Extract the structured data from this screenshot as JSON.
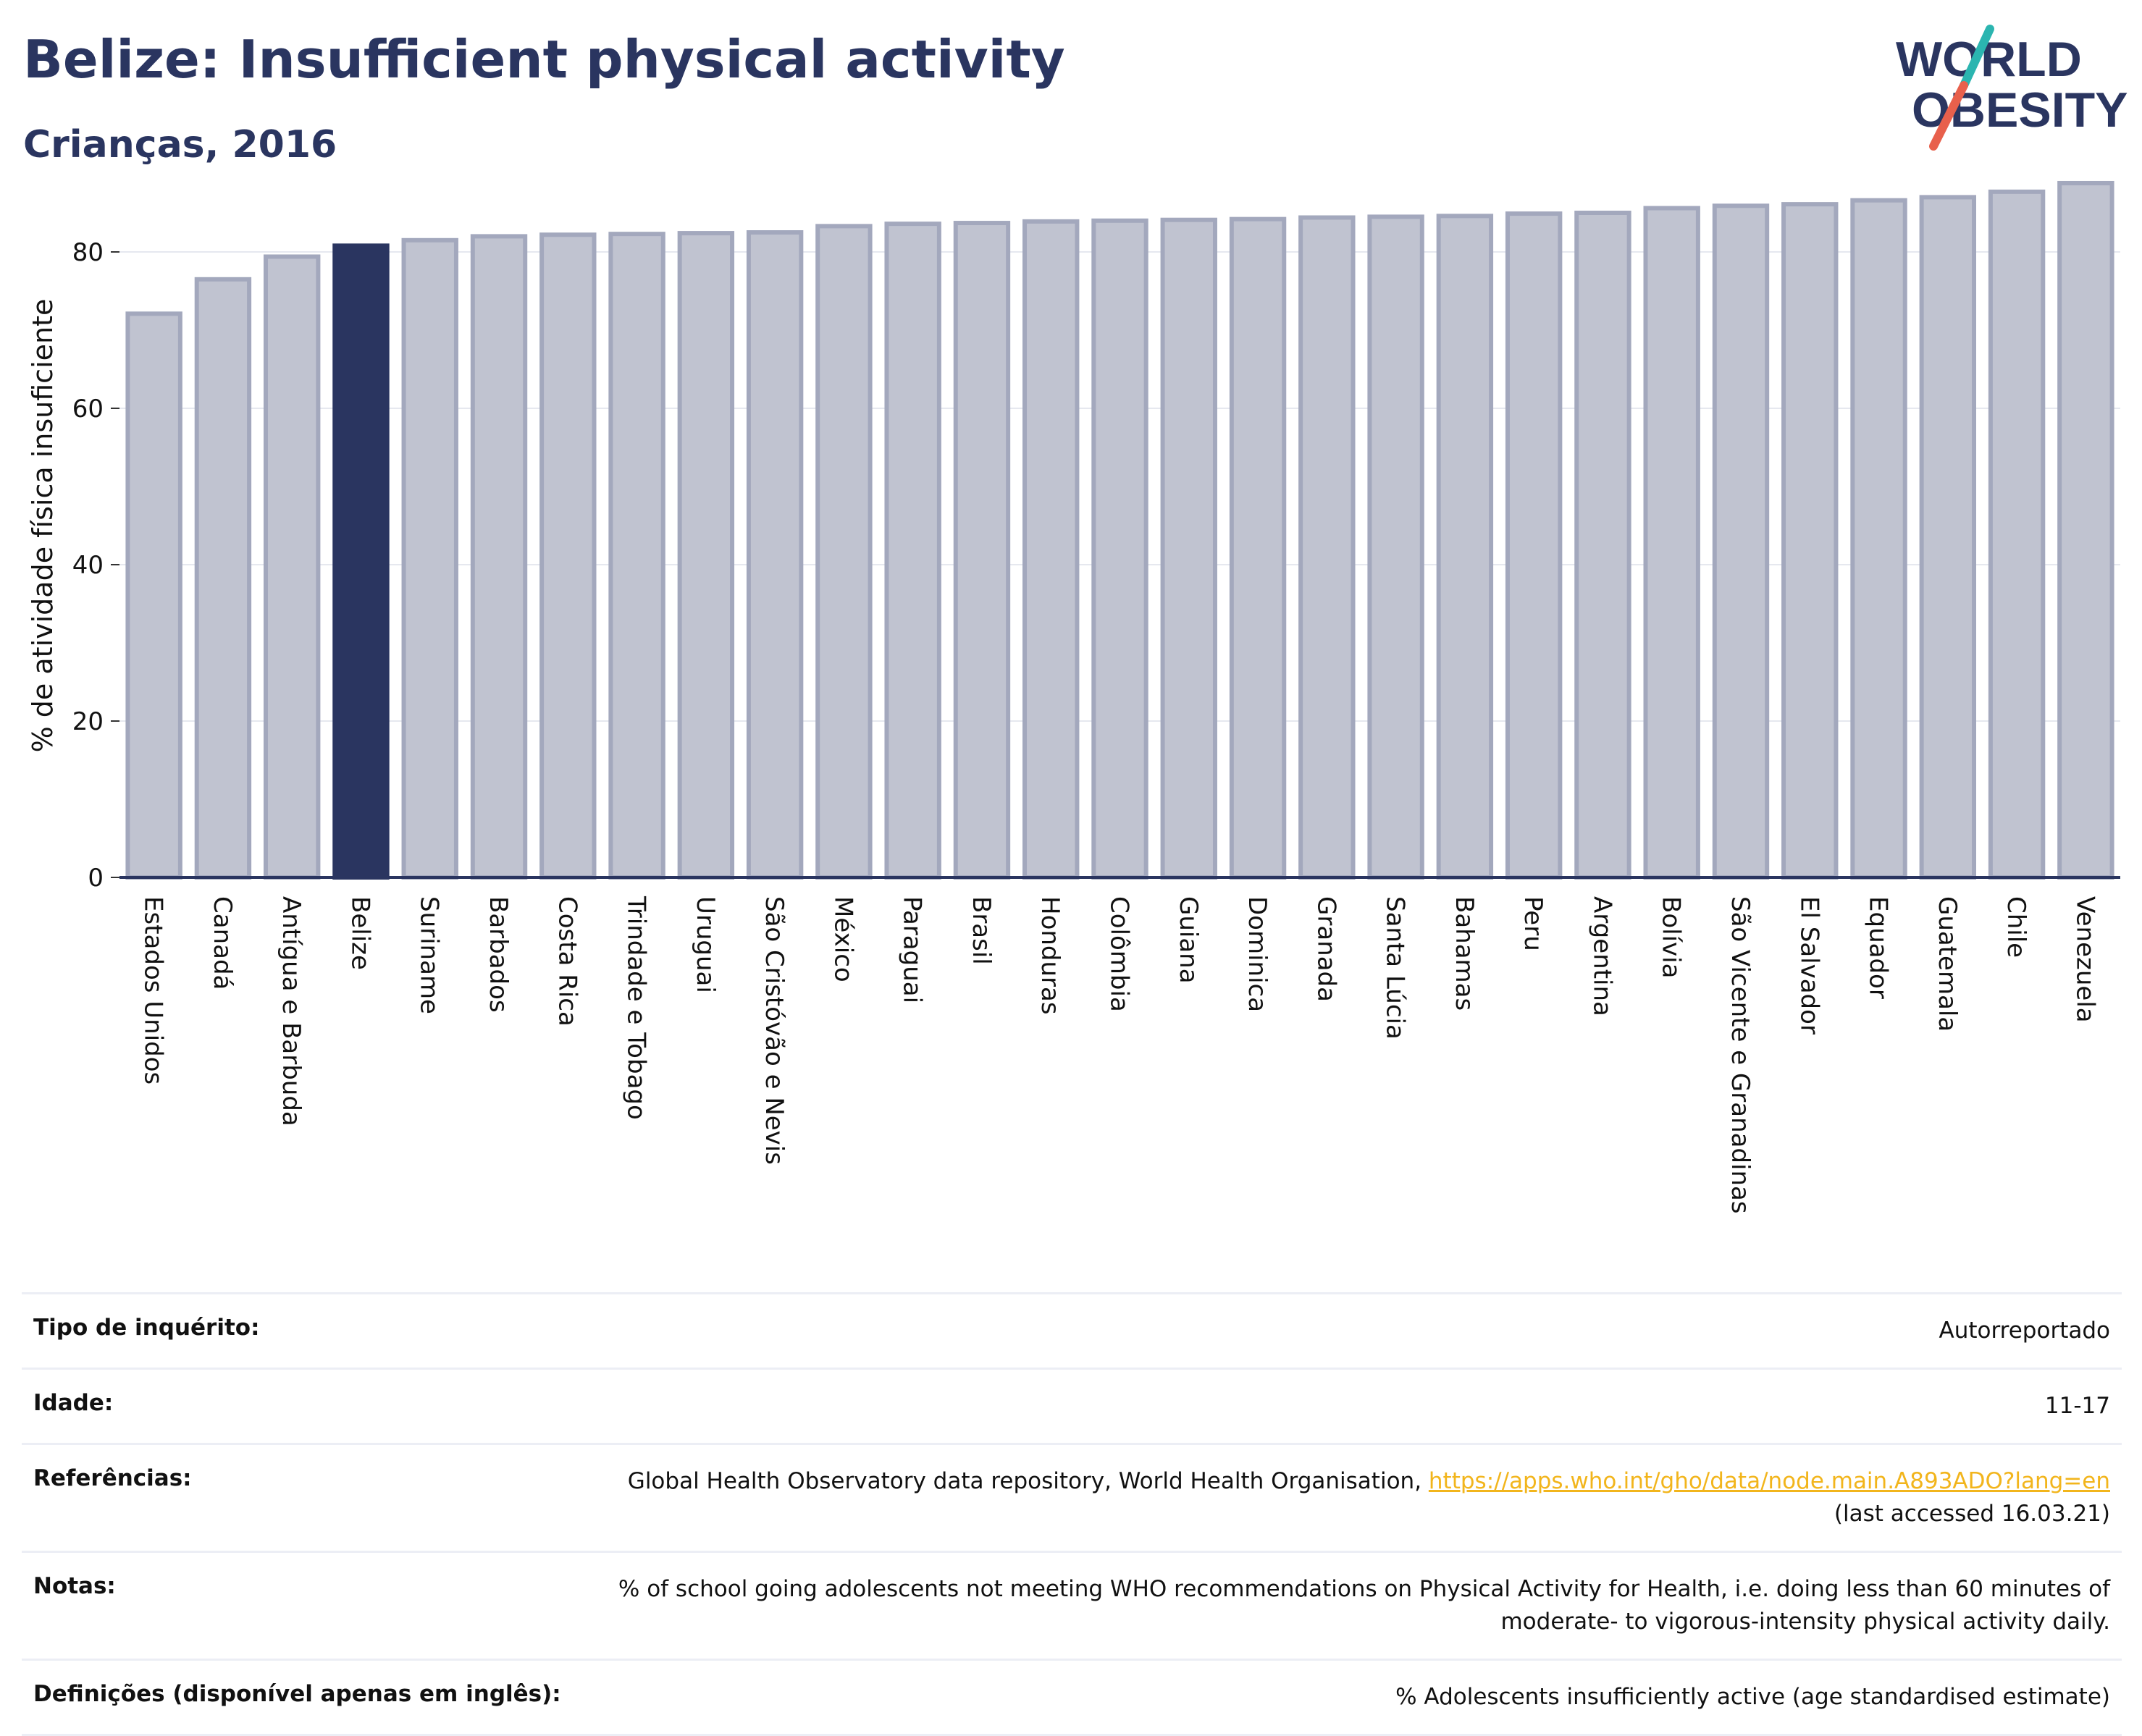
{
  "header": {
    "title": "Belize: Insufficient physical activity",
    "subtitle": "Crianças, 2016"
  },
  "logo": {
    "line1": "WORLD",
    "line2": "OBESITY",
    "accent_teal": "#2bb5b0",
    "accent_red": "#e8604c",
    "color": "#2a3560"
  },
  "chart_data": {
    "type": "bar",
    "title": "",
    "xlabel": "",
    "ylabel": "% de atividade física insuficiente",
    "ylim": [
      0,
      90
    ],
    "yticks": [
      0,
      20,
      40,
      60,
      80
    ],
    "grid": true,
    "highlight": "Belize",
    "colors": {
      "bar": "#c0c3d0",
      "bar_border": "#a3a8bd",
      "highlight": "#2a3560",
      "axis": "#2a3560",
      "grid": "#e6e8ef"
    },
    "categories": [
      "Estados Unidos",
      "Canadá",
      "Antígua e Barbuda",
      "Belize",
      "Suriname",
      "Barbados",
      "Costa Rica",
      "Trindade e Tobago",
      "Uruguai",
      "São Cristóvão e Nevis",
      "México",
      "Paraguai",
      "Brasil",
      "Honduras",
      "Colômbia",
      "Guiana",
      "Dominica",
      "Granada",
      "Santa Lúcia",
      "Bahamas",
      "Peru",
      "Argentina",
      "Bolívia",
      "São Vicente e Granadinas",
      "El Salvador",
      "Equador",
      "Guatemala",
      "Chile",
      "Venezuela"
    ],
    "values": [
      72.1,
      76.5,
      79.4,
      80.8,
      81.5,
      82.0,
      82.2,
      82.3,
      82.4,
      82.5,
      83.3,
      83.6,
      83.7,
      83.9,
      84.0,
      84.1,
      84.2,
      84.4,
      84.5,
      84.6,
      84.9,
      85.0,
      85.6,
      85.9,
      86.1,
      86.6,
      87.0,
      87.7,
      88.8
    ]
  },
  "info": {
    "survey_type": {
      "label": "Tipo de inquérito:",
      "value": "Autorreportado"
    },
    "age": {
      "label": "Idade:",
      "value": "11-17"
    },
    "references": {
      "label": "Referências:",
      "text": "Global Health Observatory data repository, World Health Organisation,",
      "link": "https://apps.who.int/gho/data/node.main.A893ADO?lang=en",
      "accessed": "(last accessed 16.03.21)"
    },
    "notes": {
      "label": "Notas:",
      "line1": "% of school going adolescents not meeting WHO recommendations on Physical Activity for Health, i.e. doing less than 60 minutes of",
      "line2": "moderate- to vigorous-intensity physical activity daily."
    },
    "definitions": {
      "label": "Definições (disponível apenas em inglês):",
      "value": "% Adolescents insufficiently active (age standardised estimate)"
    }
  }
}
